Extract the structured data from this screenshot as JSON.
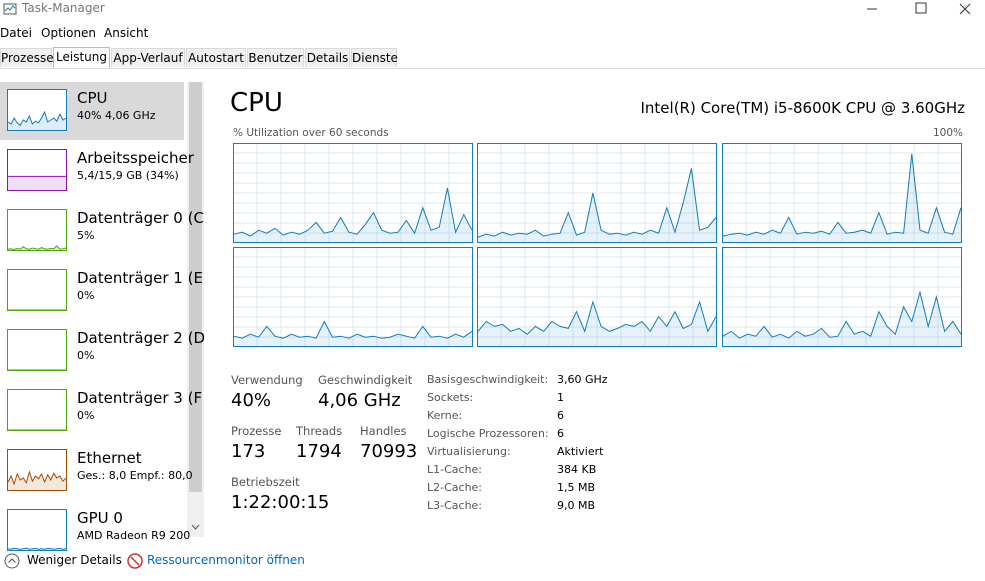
{
  "window": {
    "title": "Task-Manager"
  },
  "menu": [
    "Datei",
    "Optionen",
    "Ansicht"
  ],
  "tabs": [
    {
      "label": "Prozesse"
    },
    {
      "label": "Leistung",
      "active": true
    },
    {
      "label": "App-Verlauf"
    },
    {
      "label": "Autostart"
    },
    {
      "label": "Benutzer"
    },
    {
      "label": "Details"
    },
    {
      "label": "Dienste"
    }
  ],
  "sidebar": [
    {
      "name": "CPU",
      "detail": "40% 4,06 GHz",
      "color": "#117dbb",
      "selected": true,
      "values": [
        20,
        15,
        30,
        18,
        12,
        25,
        20,
        35,
        15,
        22,
        18,
        30,
        45,
        20,
        25,
        30,
        22,
        40,
        25,
        30
      ]
    },
    {
      "name": "Arbeitsspeicher",
      "detail": "5,4/15,9 GB (34%)",
      "color": "#8b12ae",
      "values": [
        34,
        34,
        34,
        34,
        34,
        34,
        34,
        34,
        34,
        34,
        34,
        34,
        34,
        34,
        34,
        34,
        34,
        34,
        34,
        34
      ]
    },
    {
      "name": "Datenträger 0 (C",
      "detail": "5%",
      "color": "#4da60c",
      "values": [
        2,
        3,
        1,
        4,
        2,
        8,
        3,
        2,
        5,
        3,
        2,
        6,
        3,
        2,
        4,
        3,
        10,
        2,
        3,
        5
      ]
    },
    {
      "name": "Datenträger 1 (E",
      "detail": "0%",
      "color": "#4da60c",
      "values": [
        0,
        0,
        0,
        0,
        0,
        0,
        0,
        0,
        0,
        0,
        0,
        0,
        0,
        0,
        0,
        0,
        0,
        0,
        0,
        0
      ]
    },
    {
      "name": "Datenträger 2 (D",
      "detail": "0%",
      "color": "#4da60c",
      "values": [
        0,
        0,
        0,
        0,
        0,
        0,
        0,
        0,
        0,
        0,
        0,
        0,
        0,
        0,
        0,
        0,
        0,
        0,
        0,
        0
      ]
    },
    {
      "name": "Datenträger 3 (F",
      "detail": "0%",
      "color": "#4da60c",
      "values": [
        0,
        0,
        0,
        0,
        0,
        0,
        0,
        0,
        0,
        0,
        0,
        0,
        0,
        0,
        0,
        0,
        0,
        0,
        0,
        0
      ]
    },
    {
      "name": "Ethernet",
      "detail": "Ges.: 8,0 Empf.: 80,0",
      "color": "#a74f01",
      "values": [
        20,
        35,
        15,
        40,
        25,
        30,
        18,
        45,
        22,
        35,
        28,
        40,
        20,
        38,
        25,
        42,
        30,
        35,
        22,
        30
      ]
    },
    {
      "name": "GPU 0",
      "detail": "AMD Radeon R9 200",
      "color": "#117dbb",
      "values": [
        3,
        2,
        4,
        3,
        2,
        3,
        5,
        2,
        3,
        4,
        2,
        3,
        2,
        4,
        3,
        2,
        3,
        4,
        2,
        3
      ]
    }
  ],
  "main": {
    "title": "CPU",
    "model": "Intel(R) Core(TM) i5-8600K CPU @ 3.60GHz",
    "graph_label": "% Utilization over 60 seconds",
    "graph_max": "100%",
    "cores": [
      {
        "values": [
          8,
          10,
          6,
          12,
          9,
          14,
          7,
          10,
          8,
          12,
          20,
          9,
          11,
          25,
          10,
          8,
          18,
          30,
          12,
          9,
          10,
          22,
          9,
          35,
          12,
          15,
          55,
          10,
          28,
          12
        ]
      },
      {
        "values": [
          5,
          8,
          6,
          10,
          7,
          9,
          8,
          12,
          6,
          8,
          9,
          30,
          7,
          10,
          50,
          12,
          8,
          9,
          7,
          10,
          8,
          12,
          9,
          35,
          10,
          40,
          75,
          12,
          15,
          25
        ]
      },
      {
        "values": [
          6,
          8,
          9,
          7,
          10,
          8,
          12,
          9,
          25,
          8,
          10,
          9,
          11,
          8,
          20,
          9,
          10,
          12,
          9,
          30,
          8,
          10,
          9,
          90,
          12,
          9,
          35,
          10,
          8,
          35
        ]
      },
      {
        "values": [
          10,
          8,
          12,
          9,
          20,
          10,
          8,
          12,
          9,
          10,
          8,
          25,
          9,
          10,
          8,
          12,
          9,
          10,
          8,
          9,
          12,
          10,
          8,
          20,
          9,
          10,
          8,
          12,
          9,
          15
        ]
      },
      {
        "values": [
          15,
          25,
          20,
          22,
          15,
          18,
          12,
          20,
          15,
          25,
          20,
          18,
          35,
          15,
          45,
          20,
          15,
          18,
          22,
          20,
          25,
          15,
          30,
          20,
          35,
          18,
          22,
          45,
          15,
          30
        ]
      },
      {
        "values": [
          10,
          15,
          8,
          12,
          10,
          20,
          9,
          12,
          8,
          15,
          10,
          12,
          18,
          9,
          10,
          25,
          12,
          15,
          10,
          35,
          20,
          12,
          40,
          25,
          55,
          20,
          50,
          15,
          25,
          12
        ]
      }
    ],
    "stats": [
      {
        "label": "Verwendung",
        "value": "40%"
      },
      {
        "label": "Geschwindigkeit",
        "value": "4,06 GHz"
      },
      {
        "label": "Prozesse",
        "value": "173"
      },
      {
        "label": "Threads",
        "value": "1794"
      },
      {
        "label": "Handles",
        "value": "70993"
      },
      {
        "label": "Betriebszeit",
        "value": "1:22:00:15"
      }
    ],
    "specs": [
      {
        "key": "Basisgeschwindigkeit:",
        "value": "3,60 GHz"
      },
      {
        "key": "Sockets:",
        "value": "1"
      },
      {
        "key": "Kerne:",
        "value": "6"
      },
      {
        "key": "Logische Prozessoren:",
        "value": "6"
      },
      {
        "key": "Virtualisierung:",
        "value": "Aktiviert"
      },
      {
        "key": "L1-Cache:",
        "value": "384 KB"
      },
      {
        "key": "L2-Cache:",
        "value": "1,5 MB"
      },
      {
        "key": "L3-Cache:",
        "value": "9,0 MB"
      }
    ]
  },
  "footer": {
    "less": "Weniger Details",
    "monitor": "Ressourcenmonitor öffnen"
  }
}
